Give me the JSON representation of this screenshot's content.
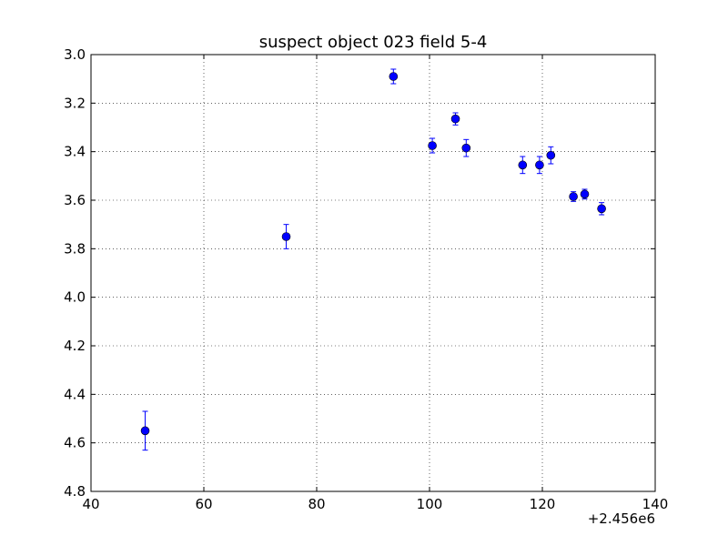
{
  "chart_data": {
    "type": "scatter",
    "title": "suspect object 023 field 5-4",
    "xlabel": "",
    "ylabel": "",
    "x_offset_label": "+2.456e6",
    "xlim": [
      40,
      140
    ],
    "ylim": [
      3.0,
      4.8
    ],
    "y_inverted": true,
    "grid": true,
    "x_ticks": [
      "40",
      "60",
      "80",
      "100",
      "120",
      "140"
    ],
    "y_ticks": [
      "3.0",
      "3.2",
      "3.4",
      "3.6",
      "3.8",
      "4.0",
      "4.2",
      "4.4",
      "4.6",
      "4.8"
    ],
    "series": [
      {
        "color": "#0000ff",
        "marker": "circle",
        "points": [
          {
            "x": 49.6,
            "y": 4.55,
            "err": 0.08
          },
          {
            "x": 74.6,
            "y": 3.75,
            "err": 0.05
          },
          {
            "x": 93.6,
            "y": 3.09,
            "err": 0.03
          },
          {
            "x": 100.5,
            "y": 3.375,
            "err": 0.03
          },
          {
            "x": 104.6,
            "y": 3.265,
            "err": 0.025
          },
          {
            "x": 106.5,
            "y": 3.385,
            "err": 0.035
          },
          {
            "x": 116.5,
            "y": 3.455,
            "err": 0.035
          },
          {
            "x": 119.5,
            "y": 3.455,
            "err": 0.035
          },
          {
            "x": 121.5,
            "y": 3.415,
            "err": 0.035
          },
          {
            "x": 125.5,
            "y": 3.585,
            "err": 0.02
          },
          {
            "x": 127.5,
            "y": 3.575,
            "err": 0.02
          },
          {
            "x": 130.5,
            "y": 3.635,
            "err": 0.025
          }
        ]
      }
    ]
  }
}
